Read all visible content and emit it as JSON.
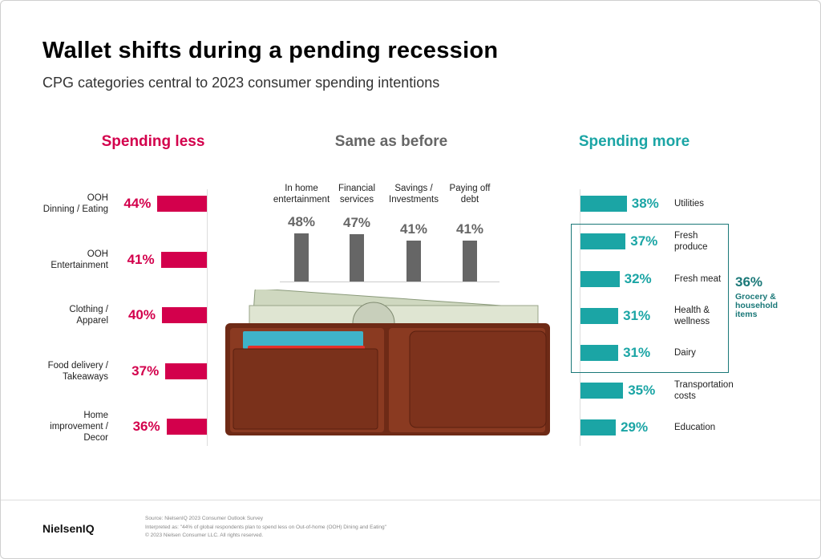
{
  "header": {
    "title": "Wallet shifts during a pending recession",
    "subtitle": "CPG categories central to 2023 consumer spending intentions"
  },
  "chart_data": [
    {
      "type": "hbar-left",
      "title": "Spending less",
      "categories": [
        "OOH\nDinning / Eating",
        "OOH\nEntertainment",
        "Clothing /\nApparel",
        "Food delivery /\nTakeaways",
        "Home\nimprovement /\nDecor"
      ],
      "values": [
        44,
        41,
        40,
        37,
        36
      ],
      "value_labels": [
        "44%",
        "41%",
        "40%",
        "37%",
        "36%"
      ],
      "color": "#d3004c"
    },
    {
      "type": "bar",
      "title": "Same as before",
      "categories": [
        "In home\nentertainment",
        "Financial\nservices",
        "Savings /\nInvestments",
        "Paying off\ndebt"
      ],
      "values": [
        48,
        47,
        41,
        41
      ],
      "value_labels": [
        "48%",
        "47%",
        "41%",
        "41%"
      ],
      "color": "#666666"
    },
    {
      "type": "hbar-right",
      "title": "Spending more",
      "categories": [
        "Utilities",
        "Fresh\nproduce",
        "Fresh meat",
        "Health &\nwellness",
        "Dairy",
        "Transportation\ncosts",
        "Education"
      ],
      "values": [
        38,
        37,
        32,
        31,
        31,
        35,
        29
      ],
      "value_labels": [
        "38%",
        "37%",
        "32%",
        "31%",
        "31%",
        "35%",
        "29%"
      ],
      "color": "#1ba5a5",
      "annotation": {
        "value_label": "36%",
        "text": "Grocery &\nhousehold\nitems"
      }
    }
  ],
  "footer": {
    "brand": "NielsenIQ",
    "source": "Source: NielsenIQ 2023 Consumer Outlook Survey",
    "note": "Interpreted as: \"44% of global respondents plan to spend less on Out-of-home (OOH) Dining and Eating\"",
    "copyright": "© 2023 Nielsen Consumer LLC. All rights reserved."
  }
}
